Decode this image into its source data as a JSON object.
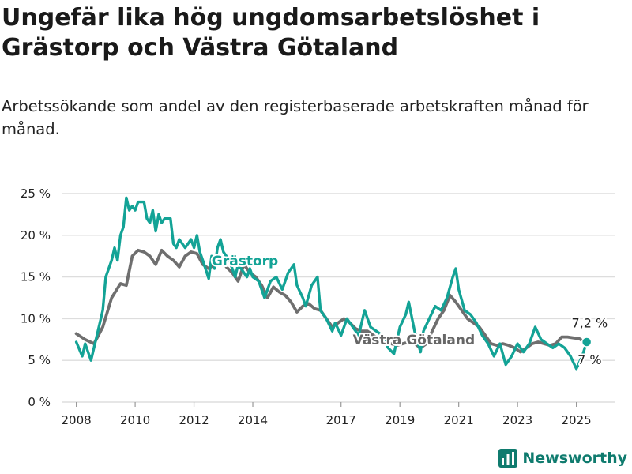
{
  "title": "Ungefär lika hög ungdomsarbetslöshet i Grästorp och Västra Götaland",
  "subtitle": "Arbetssökande som andel av den registerbaserade arbetskraften månad för månad.",
  "brand": "Newsworthy",
  "colors": {
    "grastorp": "#13a396",
    "vgr": "#6f6f6f",
    "brand": "#0f7b6e"
  },
  "chart_data": {
    "type": "line",
    "ylim": [
      0,
      25
    ],
    "yticks": [
      0,
      5,
      10,
      15,
      20,
      25
    ],
    "ytick_labels": [
      "0 %",
      "5 %",
      "10 %",
      "15 %",
      "20 %",
      "25 %"
    ],
    "xlim": [
      2007.5,
      2026.3
    ],
    "xticks": [
      2008,
      2010,
      2012,
      2014,
      2017,
      2019,
      2021,
      2023,
      2025
    ],
    "xtick_labels": [
      "2008",
      "2010",
      "2012",
      "2014",
      "2017",
      "2019",
      "2021",
      "2023",
      "2025"
    ],
    "grid": true,
    "series": [
      {
        "name": "Grästorp",
        "end_label": "7,2 %",
        "points": [
          [
            2008.0,
            7.2
          ],
          [
            2008.2,
            5.5
          ],
          [
            2008.3,
            7.0
          ],
          [
            2008.5,
            5.0
          ],
          [
            2008.7,
            8.0
          ],
          [
            2008.9,
            11.0
          ],
          [
            2009.0,
            15.0
          ],
          [
            2009.2,
            17.0
          ],
          [
            2009.3,
            18.5
          ],
          [
            2009.4,
            17.0
          ],
          [
            2009.5,
            20.0
          ],
          [
            2009.6,
            21.0
          ],
          [
            2009.7,
            24.5
          ],
          [
            2009.8,
            23.0
          ],
          [
            2009.9,
            23.5
          ],
          [
            2010.0,
            23.0
          ],
          [
            2010.1,
            24.0
          ],
          [
            2010.3,
            24.0
          ],
          [
            2010.4,
            22.0
          ],
          [
            2010.5,
            21.5
          ],
          [
            2010.6,
            23.0
          ],
          [
            2010.7,
            20.5
          ],
          [
            2010.8,
            22.5
          ],
          [
            2010.9,
            21.5
          ],
          [
            2011.0,
            22.0
          ],
          [
            2011.2,
            22.0
          ],
          [
            2011.3,
            19.0
          ],
          [
            2011.4,
            18.5
          ],
          [
            2011.5,
            19.5
          ],
          [
            2011.7,
            18.5
          ],
          [
            2011.8,
            19.0
          ],
          [
            2011.9,
            19.5
          ],
          [
            2012.0,
            18.5
          ],
          [
            2012.1,
            20.0
          ],
          [
            2012.2,
            18.0
          ],
          [
            2012.3,
            17.0
          ],
          [
            2012.5,
            14.8
          ],
          [
            2012.6,
            17.5
          ],
          [
            2012.7,
            16.0
          ],
          [
            2012.8,
            18.5
          ],
          [
            2012.9,
            19.5
          ],
          [
            2013.0,
            18.0
          ],
          [
            2013.1,
            17.5
          ],
          [
            2013.2,
            17.0
          ],
          [
            2013.3,
            16.0
          ],
          [
            2013.4,
            15.0
          ],
          [
            2013.5,
            16.5
          ],
          [
            2013.6,
            16.0
          ],
          [
            2013.8,
            15.0
          ],
          [
            2013.9,
            16.0
          ],
          [
            2014.0,
            15.0
          ],
          [
            2014.2,
            14.5
          ],
          [
            2014.4,
            12.5
          ],
          [
            2014.6,
            14.5
          ],
          [
            2014.8,
            15.0
          ],
          [
            2015.0,
            13.5
          ],
          [
            2015.2,
            15.5
          ],
          [
            2015.4,
            16.5
          ],
          [
            2015.5,
            14.0
          ],
          [
            2015.7,
            12.5
          ],
          [
            2015.8,
            11.5
          ],
          [
            2016.0,
            14.0
          ],
          [
            2016.2,
            15.0
          ],
          [
            2016.3,
            11.0
          ],
          [
            2016.5,
            10.0
          ],
          [
            2016.7,
            8.5
          ],
          [
            2016.8,
            9.5
          ],
          [
            2017.0,
            8.0
          ],
          [
            2017.2,
            10.0
          ],
          [
            2017.4,
            9.0
          ],
          [
            2017.6,
            8.0
          ],
          [
            2017.8,
            11.0
          ],
          [
            2018.0,
            9.0
          ],
          [
            2018.2,
            8.5
          ],
          [
            2018.4,
            8.0
          ],
          [
            2018.6,
            6.5
          ],
          [
            2018.8,
            5.8
          ],
          [
            2019.0,
            9.0
          ],
          [
            2019.2,
            10.5
          ],
          [
            2019.3,
            12.0
          ],
          [
            2019.5,
            8.5
          ],
          [
            2019.7,
            6.0
          ],
          [
            2019.8,
            8.5
          ],
          [
            2020.0,
            10.0
          ],
          [
            2020.2,
            11.5
          ],
          [
            2020.4,
            11.0
          ],
          [
            2020.6,
            12.5
          ],
          [
            2020.8,
            15.0
          ],
          [
            2020.9,
            16.0
          ],
          [
            2021.0,
            13.5
          ],
          [
            2021.2,
            11.0
          ],
          [
            2021.4,
            10.5
          ],
          [
            2021.6,
            9.5
          ],
          [
            2021.8,
            8.0
          ],
          [
            2022.0,
            7.0
          ],
          [
            2022.2,
            5.5
          ],
          [
            2022.4,
            7.0
          ],
          [
            2022.6,
            4.5
          ],
          [
            2022.8,
            5.5
          ],
          [
            2023.0,
            7.0
          ],
          [
            2023.2,
            6.0
          ],
          [
            2023.4,
            7.0
          ],
          [
            2023.6,
            9.0
          ],
          [
            2023.8,
            7.5
          ],
          [
            2024.0,
            7.0
          ],
          [
            2024.2,
            6.5
          ],
          [
            2024.4,
            7.0
          ],
          [
            2024.6,
            6.5
          ],
          [
            2024.8,
            5.5
          ],
          [
            2025.0,
            4.0
          ],
          [
            2025.2,
            5.5
          ],
          [
            2025.35,
            7.2
          ]
        ]
      },
      {
        "name": "Västra Götaland",
        "end_label": "7 %",
        "points": [
          [
            2008.0,
            8.2
          ],
          [
            2008.3,
            7.5
          ],
          [
            2008.6,
            7.0
          ],
          [
            2008.9,
            9.0
          ],
          [
            2009.2,
            12.5
          ],
          [
            2009.5,
            14.2
          ],
          [
            2009.7,
            14.0
          ],
          [
            2009.9,
            17.5
          ],
          [
            2010.1,
            18.2
          ],
          [
            2010.3,
            18.0
          ],
          [
            2010.5,
            17.5
          ],
          [
            2010.7,
            16.5
          ],
          [
            2010.9,
            18.2
          ],
          [
            2011.1,
            17.5
          ],
          [
            2011.3,
            17.0
          ],
          [
            2011.5,
            16.2
          ],
          [
            2011.7,
            17.5
          ],
          [
            2011.9,
            18.0
          ],
          [
            2012.1,
            17.8
          ],
          [
            2012.3,
            16.5
          ],
          [
            2012.5,
            16.0
          ],
          [
            2012.7,
            16.5
          ],
          [
            2012.9,
            17.5
          ],
          [
            2013.1,
            16.2
          ],
          [
            2013.3,
            15.5
          ],
          [
            2013.5,
            14.5
          ],
          [
            2013.7,
            16.5
          ],
          [
            2013.9,
            15.5
          ],
          [
            2014.1,
            15.0
          ],
          [
            2014.3,
            14.0
          ],
          [
            2014.5,
            12.5
          ],
          [
            2014.7,
            13.8
          ],
          [
            2014.9,
            13.2
          ],
          [
            2015.1,
            12.8
          ],
          [
            2015.3,
            12.0
          ],
          [
            2015.5,
            10.8
          ],
          [
            2015.7,
            11.5
          ],
          [
            2015.9,
            11.8
          ],
          [
            2016.1,
            11.2
          ],
          [
            2016.3,
            11.0
          ],
          [
            2016.5,
            10.0
          ],
          [
            2016.7,
            9.0
          ],
          [
            2016.9,
            9.5
          ],
          [
            2017.1,
            10.0
          ],
          [
            2017.3,
            9.5
          ],
          [
            2017.5,
            8.8
          ],
          [
            2017.7,
            8.5
          ],
          [
            2017.9,
            8.5
          ],
          [
            2018.1,
            8.0
          ],
          [
            2018.3,
            7.5
          ],
          [
            2018.5,
            7.0
          ],
          [
            2018.7,
            7.0
          ],
          [
            2018.9,
            6.8
          ],
          [
            2019.1,
            7.0
          ],
          [
            2019.3,
            7.2
          ],
          [
            2019.5,
            7.0
          ],
          [
            2019.7,
            6.5
          ],
          [
            2019.9,
            7.0
          ],
          [
            2020.1,
            8.5
          ],
          [
            2020.3,
            10.0
          ],
          [
            2020.5,
            11.0
          ],
          [
            2020.7,
            12.8
          ],
          [
            2020.9,
            12.0
          ],
          [
            2021.1,
            11.0
          ],
          [
            2021.3,
            10.0
          ],
          [
            2021.5,
            9.5
          ],
          [
            2021.7,
            9.0
          ],
          [
            2021.9,
            8.0
          ],
          [
            2022.1,
            7.0
          ],
          [
            2022.3,
            6.8
          ],
          [
            2022.5,
            7.0
          ],
          [
            2022.7,
            6.8
          ],
          [
            2022.9,
            6.5
          ],
          [
            2023.1,
            6.0
          ],
          [
            2023.3,
            6.5
          ],
          [
            2023.5,
            7.0
          ],
          [
            2023.7,
            7.2
          ],
          [
            2023.9,
            7.0
          ],
          [
            2024.1,
            6.8
          ],
          [
            2024.3,
            7.0
          ],
          [
            2024.5,
            7.8
          ],
          [
            2024.7,
            7.8
          ],
          [
            2024.9,
            7.7
          ],
          [
            2025.1,
            7.6
          ],
          [
            2025.35,
            7.0
          ]
        ]
      }
    ]
  }
}
